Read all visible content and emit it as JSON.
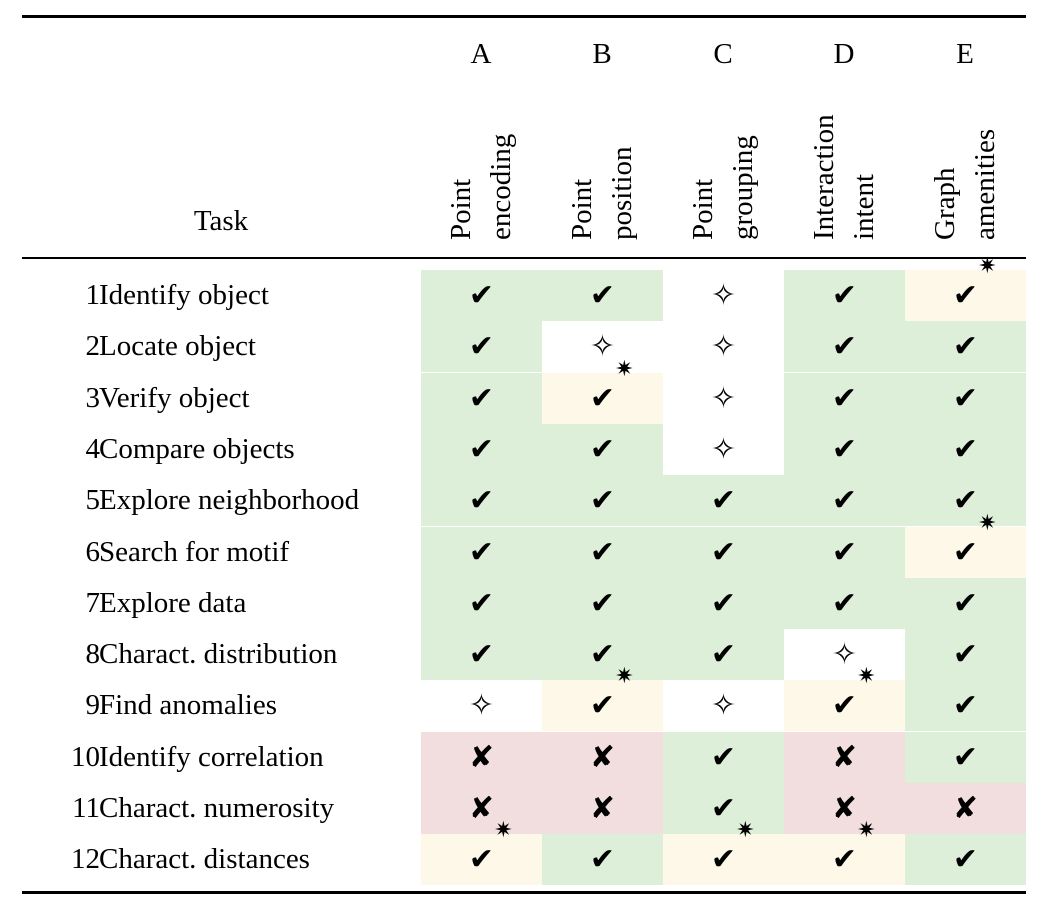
{
  "header": {
    "task_label": "Task",
    "columns": [
      {
        "letter": "A",
        "line1": "Point",
        "line2": "encoding"
      },
      {
        "letter": "B",
        "line1": "Point",
        "line2": "position"
      },
      {
        "letter": "C",
        "line1": "Point",
        "line2": "grouping"
      },
      {
        "letter": "D",
        "line1": "Interaction",
        "line2": "intent"
      },
      {
        "letter": "E",
        "line1": "Graph",
        "line2": "amenities"
      }
    ]
  },
  "legend_symbols": {
    "check": "✔",
    "check_star": "✔",
    "star_mark": "✷",
    "cross": "✘",
    "open_star": "✧"
  },
  "rows": [
    {
      "num": "1",
      "task": "Identify object",
      "cells": [
        "check",
        "check",
        "star",
        "check",
        "checkstar"
      ]
    },
    {
      "num": "2",
      "task": "Locate object",
      "cells": [
        "check",
        "star",
        "star",
        "check",
        "check"
      ]
    },
    {
      "num": "3",
      "task": "Verify object",
      "cells": [
        "check",
        "checkstar",
        "star",
        "check",
        "check"
      ]
    },
    {
      "num": "4",
      "task": "Compare objects",
      "cells": [
        "check",
        "check",
        "star",
        "check",
        "check"
      ]
    },
    {
      "num": "5",
      "task": "Explore neighborhood",
      "cells": [
        "check",
        "check",
        "check",
        "check",
        "check"
      ]
    },
    {
      "num": "6",
      "task": "Search for motif",
      "cells": [
        "check",
        "check",
        "check",
        "check",
        "checkstar"
      ]
    },
    {
      "num": "7",
      "task": "Explore data",
      "cells": [
        "check",
        "check",
        "check",
        "check",
        "check"
      ]
    },
    {
      "num": "8",
      "task": "Charact. distribution",
      "cells": [
        "check",
        "check",
        "check",
        "star",
        "check"
      ]
    },
    {
      "num": "9",
      "task": "Find anomalies",
      "cells": [
        "star",
        "checkstar",
        "star",
        "checkstar",
        "check"
      ]
    },
    {
      "num": "10",
      "task": "Identify correlation",
      "cells": [
        "cross",
        "cross",
        "check",
        "cross",
        "check"
      ]
    },
    {
      "num": "11",
      "task": "Charact. numerosity",
      "cells": [
        "cross",
        "cross",
        "check",
        "cross",
        "cross"
      ]
    },
    {
      "num": "12",
      "task": "Charact. distances",
      "cells": [
        "checkstar",
        "check",
        "checkstar",
        "checkstar",
        "check"
      ]
    }
  ],
  "colors": {
    "check": "#ddefd8",
    "checkstar": "#fdf8e7",
    "cross": "#f2dedf",
    "star": "#ffffff"
  }
}
